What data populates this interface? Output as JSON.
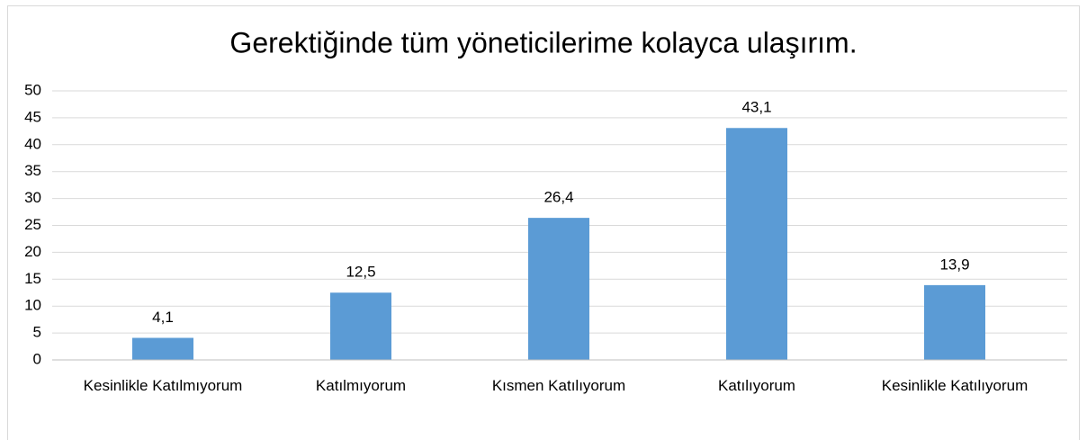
{
  "chart_data": {
    "type": "bar",
    "title": "Gerektiğinde tüm yöneticilerime kolayca ulaşırım.",
    "categories": [
      "Kesinlikle Katılmıyorum",
      "Katılmıyorum",
      "Kısmen Katılıyorum",
      "Katılıyorum",
      "Kesinlikle Katılıyorum"
    ],
    "values": [
      4.1,
      12.5,
      26.4,
      43.1,
      13.9
    ],
    "value_labels": [
      "4,1",
      "12,5",
      "26,4",
      "43,1",
      "13,9"
    ],
    "color": "#5b9bd5",
    "ylim": [
      0,
      50
    ],
    "yticks": [
      0,
      5,
      10,
      15,
      20,
      25,
      30,
      35,
      40,
      45,
      50
    ],
    "grid": true
  }
}
